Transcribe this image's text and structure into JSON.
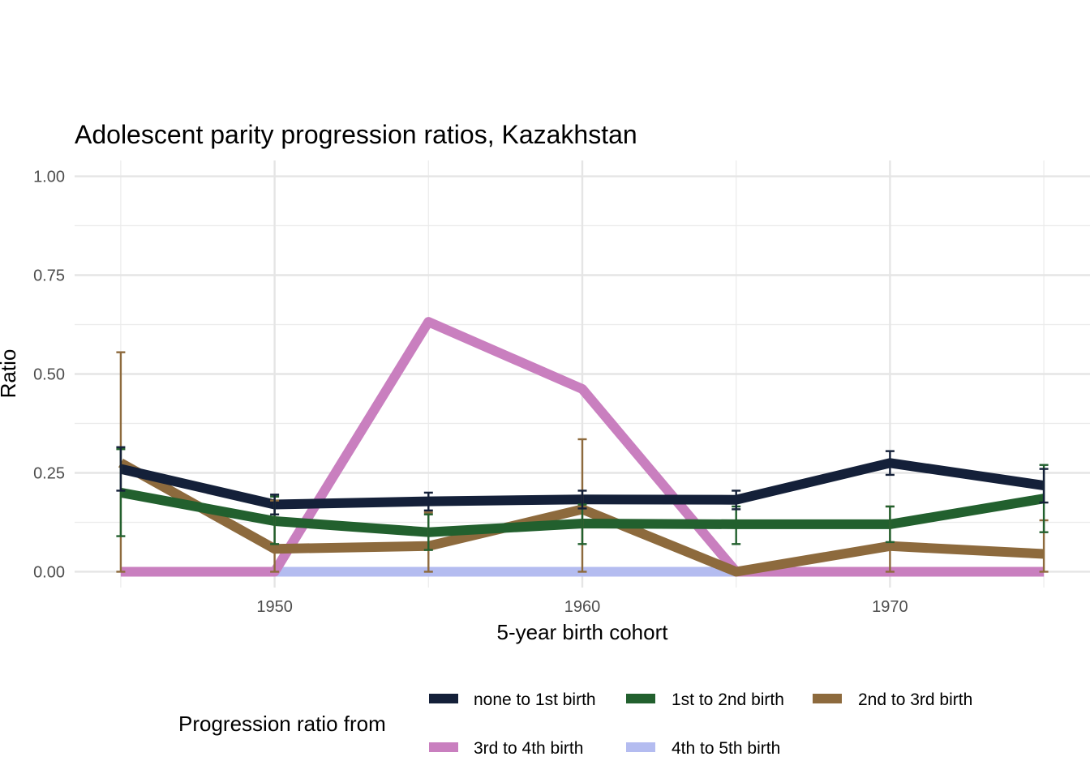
{
  "chart_data": {
    "type": "line",
    "title": "Adolescent parity progression ratios,  Kazakhstan",
    "xlabel": "5-year birth cohort",
    "ylabel": "Ratio",
    "xlim": [
      1943.5,
      1976.5
    ],
    "ylim": [
      -0.04,
      1.04
    ],
    "x_ticks": [
      1950,
      1960,
      1970
    ],
    "y_ticks": [
      0,
      0.25,
      0.5,
      0.75,
      1
    ],
    "y_tick_labels": [
      "0.00",
      "0.25",
      "0.50",
      "0.75",
      "1.00"
    ],
    "grid": true,
    "x": [
      1945,
      1950,
      1955,
      1960,
      1965,
      1970,
      1975
    ],
    "series": [
      {
        "name": "none to 1st birth",
        "color": "#142039",
        "values": [
          0.26,
          0.17,
          0.178,
          0.183,
          0.182,
          0.275,
          0.218
        ],
        "error_bars": [
          [
            0.205,
            0.315
          ],
          [
            0.145,
            0.195
          ],
          [
            0.155,
            0.2
          ],
          [
            0.16,
            0.205
          ],
          [
            0.158,
            0.205
          ],
          [
            0.245,
            0.305
          ],
          [
            0.175,
            0.26
          ]
        ]
      },
      {
        "name": "1st to 2nd birth",
        "color": "#22602E",
        "values": [
          0.2,
          0.128,
          0.1,
          0.122,
          0.12,
          0.12,
          0.185
        ],
        "error_bars": [
          [
            0.09,
            0.31
          ],
          [
            0.07,
            0.19
          ],
          [
            0.055,
            0.145
          ],
          [
            0.07,
            0.17
          ],
          [
            0.07,
            0.165
          ],
          [
            0.075,
            0.165
          ],
          [
            0.1,
            0.27
          ]
        ]
      },
      {
        "name": "2nd to 3rd birth",
        "color": "#8D6A3D",
        "values": [
          0.275,
          0.058,
          0.065,
          0.158,
          0.0,
          0.065,
          0.045
        ],
        "error_bars": [
          [
            0.0,
            0.555
          ],
          [
            0.0,
            0.18
          ],
          [
            0.0,
            0.15
          ],
          [
            0.0,
            0.335
          ],
          [
            0.0,
            0.0
          ],
          [
            0.0,
            0.165
          ],
          [
            0.0,
            0.13
          ]
        ]
      },
      {
        "name": "3rd to 4th birth",
        "color": "#C97FBF",
        "values": [
          0.0,
          0.0,
          0.632,
          0.462,
          0.0,
          0.0,
          0.0
        ]
      },
      {
        "name": "4th to 5th birth",
        "color": "#B4BCF0",
        "values": [
          0.0,
          0.0,
          0.0,
          0.0,
          0.0,
          0.0,
          0.0
        ]
      }
    ],
    "legend": {
      "title": "Progression ratio from",
      "position": "bottom"
    }
  }
}
